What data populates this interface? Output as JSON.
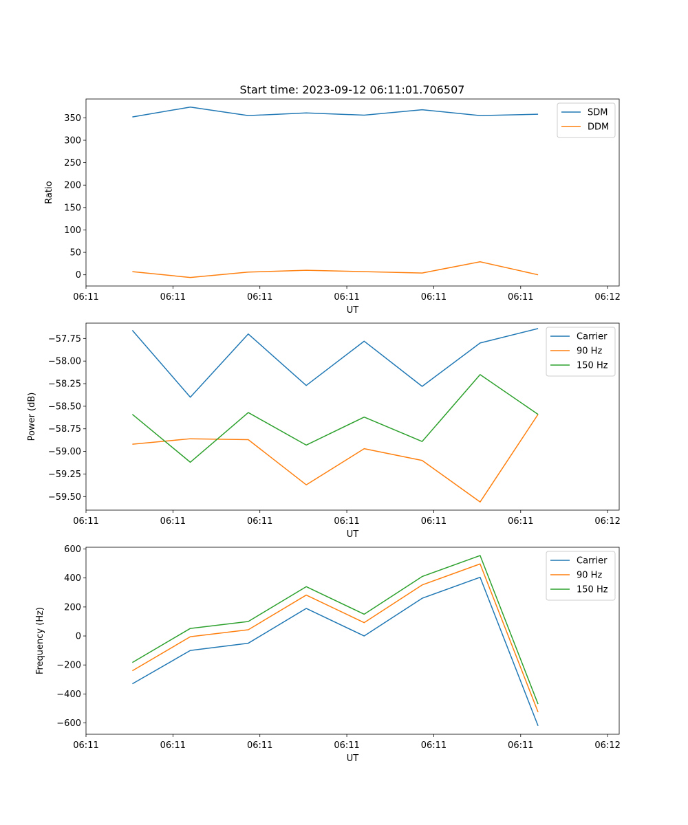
{
  "figure_title": "Start time: 2023-09-12 06:11:01.706507",
  "chart_data": [
    {
      "type": "line",
      "title": "Start time: 2023-09-12 06:11:01.706507",
      "xlabel": "UT",
      "ylabel": "Ratio",
      "x": [
        1,
        2,
        3,
        4,
        5,
        6,
        7,
        8
      ],
      "xlim": [
        0.2,
        9.4
      ],
      "xticks": [
        {
          "v": 0.2,
          "label": "06:11"
        },
        {
          "v": 1.7,
          "label": "06:11"
        },
        {
          "v": 3.2,
          "label": "06:11"
        },
        {
          "v": 4.7,
          "label": "06:11"
        },
        {
          "v": 6.2,
          "label": "06:11"
        },
        {
          "v": 7.7,
          "label": "06:11"
        },
        {
          "v": 9.2,
          "label": "06:12"
        }
      ],
      "ylim": [
        -25,
        392
      ],
      "yticks": [
        {
          "v": 0,
          "label": "0"
        },
        {
          "v": 50,
          "label": "50"
        },
        {
          "v": 100,
          "label": "100"
        },
        {
          "v": 150,
          "label": "150"
        },
        {
          "v": 200,
          "label": "200"
        },
        {
          "v": 250,
          "label": "250"
        },
        {
          "v": 300,
          "label": "300"
        },
        {
          "v": 350,
          "label": "350"
        }
      ],
      "legend": "top-right",
      "series": [
        {
          "name": "SDM",
          "color": "#1f77b4",
          "values": [
            352,
            374,
            355,
            361,
            356,
            368,
            355,
            358
          ]
        },
        {
          "name": "DDM",
          "color": "#ff7f0e",
          "values": [
            7,
            -6,
            6,
            10,
            7,
            4,
            29,
            0
          ]
        }
      ]
    },
    {
      "type": "line",
      "title": "",
      "xlabel": "UT",
      "ylabel": "Power (dB)",
      "x": [
        1,
        2,
        3,
        4,
        5,
        6,
        7,
        8
      ],
      "xlim": [
        0.2,
        9.4
      ],
      "xticks": [
        {
          "v": 0.2,
          "label": "06:11"
        },
        {
          "v": 1.7,
          "label": "06:11"
        },
        {
          "v": 3.2,
          "label": "06:11"
        },
        {
          "v": 4.7,
          "label": "06:11"
        },
        {
          "v": 6.2,
          "label": "06:11"
        },
        {
          "v": 7.7,
          "label": "06:11"
        },
        {
          "v": 9.2,
          "label": "06:12"
        }
      ],
      "ylim": [
        -59.65,
        -57.58
      ],
      "yticks": [
        {
          "v": -59.5,
          "label": "−59.50"
        },
        {
          "v": -59.25,
          "label": "−59.25"
        },
        {
          "v": -59.0,
          "label": "−59.00"
        },
        {
          "v": -58.75,
          "label": "−58.75"
        },
        {
          "v": -58.5,
          "label": "−58.50"
        },
        {
          "v": -58.25,
          "label": "−58.25"
        },
        {
          "v": -58.0,
          "label": "−58.00"
        },
        {
          "v": -57.75,
          "label": "−57.75"
        }
      ],
      "legend": "top-right",
      "series": [
        {
          "name": "Carrier",
          "color": "#1f77b4",
          "values": [
            -57.66,
            -58.4,
            -57.7,
            -58.27,
            -57.78,
            -58.28,
            -57.8,
            -57.64
          ]
        },
        {
          "name": "90 Hz",
          "color": "#ff7f0e",
          "values": [
            -58.92,
            -58.86,
            -58.87,
            -59.37,
            -58.97,
            -59.1,
            -59.56,
            -58.59
          ]
        },
        {
          "name": "150 Hz",
          "color": "#2ca02c",
          "values": [
            -58.59,
            -59.12,
            -58.57,
            -58.93,
            -58.62,
            -58.89,
            -58.15,
            -58.59
          ]
        }
      ]
    },
    {
      "type": "line",
      "title": "",
      "xlabel": "UT",
      "ylabel": "Frequency (Hz)",
      "x": [
        1,
        2,
        3,
        4,
        5,
        6,
        7,
        8
      ],
      "xlim": [
        0.2,
        9.4
      ],
      "xticks": [
        {
          "v": 0.2,
          "label": "06:11"
        },
        {
          "v": 1.7,
          "label": "06:11"
        },
        {
          "v": 3.2,
          "label": "06:11"
        },
        {
          "v": 4.7,
          "label": "06:11"
        },
        {
          "v": 6.2,
          "label": "06:11"
        },
        {
          "v": 7.7,
          "label": "06:11"
        },
        {
          "v": 9.2,
          "label": "06:12"
        }
      ],
      "ylim": [
        -678,
        612
      ],
      "yticks": [
        {
          "v": -600,
          "label": "−600"
        },
        {
          "v": -400,
          "label": "−400"
        },
        {
          "v": -200,
          "label": "−200"
        },
        {
          "v": 0,
          "label": "0"
        },
        {
          "v": 200,
          "label": "200"
        },
        {
          "v": 400,
          "label": "400"
        },
        {
          "v": 600,
          "label": "600"
        }
      ],
      "legend": "top-right",
      "series": [
        {
          "name": "Carrier",
          "color": "#1f77b4",
          "values": [
            -330,
            -100,
            -50,
            190,
            0,
            260,
            405,
            -620
          ]
        },
        {
          "name": "90 Hz",
          "color": "#ff7f0e",
          "values": [
            -240,
            -5,
            43,
            282,
            92,
            352,
            497,
            -525
          ]
        },
        {
          "name": "150 Hz",
          "color": "#2ca02c",
          "values": [
            -183,
            52,
            100,
            340,
            150,
            410,
            555,
            -470
          ]
        }
      ]
    }
  ]
}
